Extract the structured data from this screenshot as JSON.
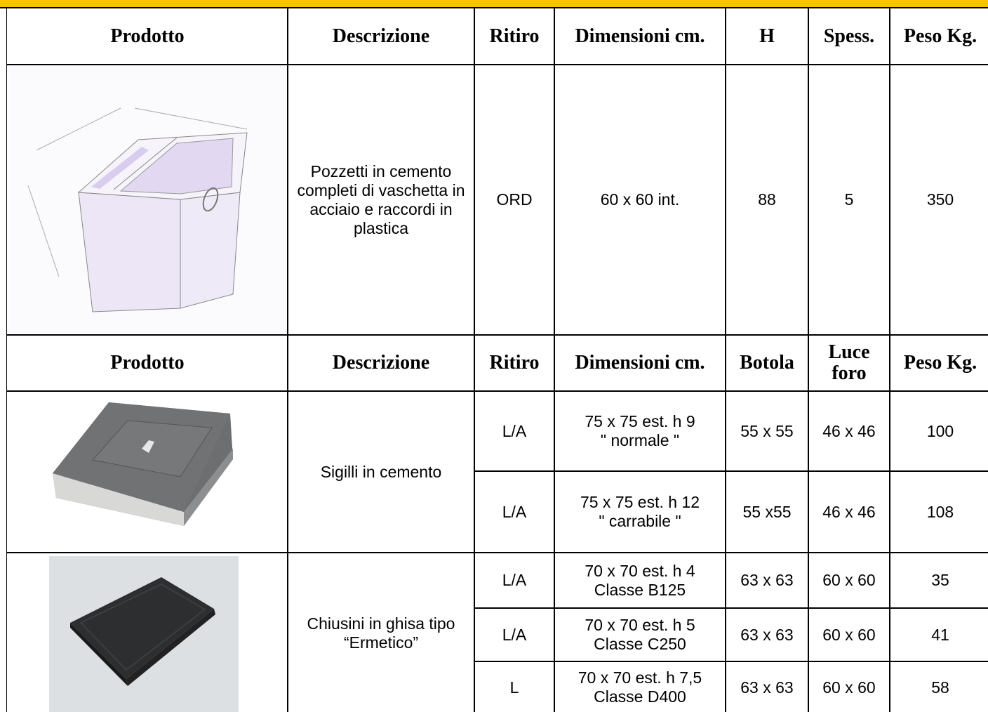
{
  "sections": [
    {
      "header": [
        "Prodotto",
        "Descrizione",
        "Ritiro",
        "Dimensioni cm.",
        "H",
        "Spess.",
        "Peso Kg."
      ],
      "products": [
        {
          "description": "Pozzetti in cemento completi di vaschetta in acciaio e raccordi in plastica",
          "variants": [
            [
              "ORD",
              "60 x 60  int.",
              88,
              5,
              350
            ]
          ]
        }
      ]
    },
    {
      "header": [
        "Prodotto",
        "Descrizione",
        "Ritiro",
        "Dimensioni cm.",
        "Botola",
        "Luce\nforo",
        "Peso Kg."
      ],
      "products": [
        {
          "description": "Sigilli in cemento",
          "variants": [
            [
              "L/A",
              "75 x 75  est. h 9\n\" normale \"",
              "55 x 55",
              "46 x 46",
              100
            ],
            [
              "L/A",
              "75 x 75  est. h 12\n\" carrabile \"",
              "55 x55",
              "46 x 46",
              108
            ]
          ]
        },
        {
          "description": "Chiusini in ghisa tipo\n“Ermetico”",
          "variants": [
            [
              "L/A",
              "70 x 70  est. h 4\nClasse B125",
              "63 x 63",
              "60 x 60",
              35
            ],
            [
              "L/A",
              "70 x 70  est. h 5\nClasse C250",
              "63 x 63",
              "60 x 60",
              41
            ],
            [
              "L",
              "70 x 70  est. h 7,5\nClasse D400",
              "63 x 63",
              "60 x 60",
              58
            ]
          ]
        }
      ]
    }
  ]
}
